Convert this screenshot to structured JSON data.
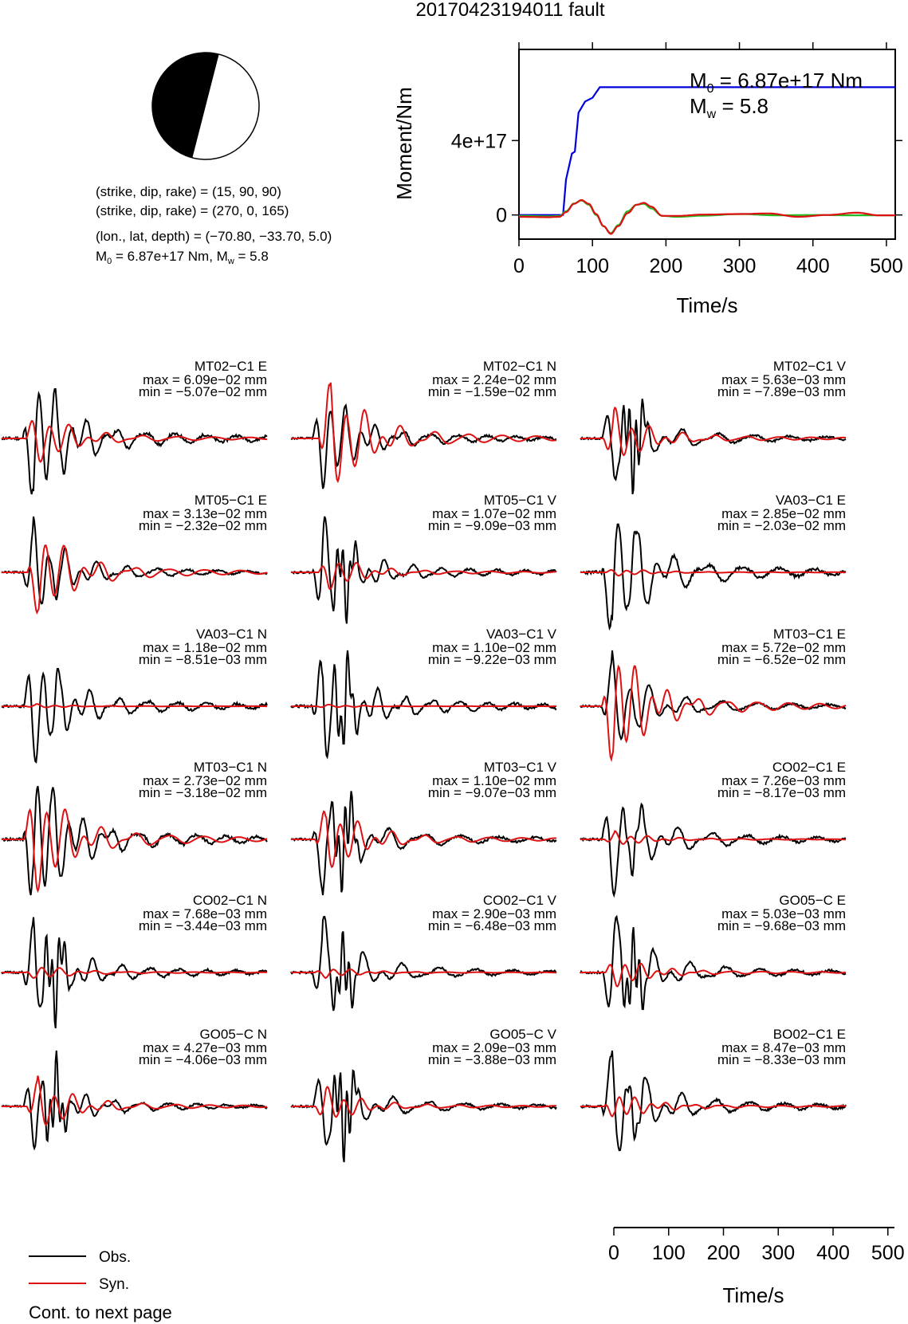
{
  "page": {
    "title": "20170423194011 fault",
    "continuation": "Cont. to next page"
  },
  "beachball": {
    "nodal1": "(strike, dip, rake) = (15, 90, 90)",
    "nodal2": "(strike, dip, rake) = (270, 0, 165)",
    "location": "(lon., lat, depth) = (−70.80, −33.70, 5.0)",
    "moment_prefix": "M",
    "moment_sub": "0",
    "moment_text": " = 6.87e+17 Nm, M",
    "mw_sub": "w",
    "mw_text": " = 5.8"
  },
  "moment_panel": {
    "ylabel": "Moment/Nm",
    "xlabel": "Time/s",
    "yticks": [
      "0",
      "4e+17"
    ],
    "xticks": [
      "0",
      "100",
      "200",
      "300",
      "400",
      "500"
    ],
    "annotation_m0_prefix": "M",
    "annotation_m0_sub": "0",
    "annotation_m0_text": " = 6.87e+17 Nm",
    "annotation_mw_prefix": "M",
    "annotation_mw_sub": "w",
    "annotation_mw_text": " = 5.8",
    "colors": {
      "cumulative": "#0000dd",
      "rate_a": "#22bb22",
      "rate_b": "#dd1111"
    }
  },
  "legend": {
    "obs_label": "Obs.",
    "syn_label": "Syn.",
    "obs_color": "#000000",
    "syn_color": "#dd1111"
  },
  "bottom_axis": {
    "xlabel": "Time/s",
    "xticks": [
      "0",
      "100",
      "200",
      "300",
      "400",
      "500"
    ]
  },
  "chart_data": [
    {
      "type": "line",
      "name": "moment",
      "xlabel": "Time/s",
      "ylabel": "Moment/Nm",
      "xlim": [
        0,
        512
      ],
      "ylim": [
        -1.3e+17,
        8.9e+17
      ],
      "series": [
        {
          "kind": "cumulative",
          "x": [
            0,
            60,
            64,
            72,
            76,
            81,
            90,
            100,
            110,
            512
          ],
          "y": [
            0,
            0,
            1.9e+17,
            3.3e+17,
            3.4e+17,
            5.5e+17,
            6.1e+17,
            6.3e+17,
            6.87e+17,
            6.87e+17
          ]
        },
        {
          "kind": "rate_green",
          "x": [
            0,
            40,
            55,
            64,
            75,
            85,
            95,
            105,
            115,
            125,
            135,
            148,
            160,
            170,
            180,
            195,
            215,
            250,
            300,
            350,
            400,
            450,
            512
          ],
          "y": [
            -5000000000000000.0,
            -7000000000000000.0,
            -6000000000000000.0,
            2e+16,
            6.2e+16,
            7.8e+16,
            5.5e+16,
            0.0,
            -6e+16,
            -9.8e+16,
            -5.5e+16,
            2e+16,
            5.5e+16,
            6e+16,
            3.5e+16,
            -5000000000000000.0,
            -1e+16,
            -4000000000000000.0,
            5000000000000000.0,
            -2000000000000000.0,
            0.0,
            -2000000000000000.0,
            -2000000000000000.0
          ]
        },
        {
          "kind": "rate_red",
          "x": [
            0,
            40,
            55,
            64,
            75,
            85,
            95,
            105,
            115,
            125,
            135,
            148,
            160,
            170,
            180,
            195,
            215,
            250,
            300,
            340,
            380,
            420,
            460,
            490,
            512
          ],
          "y": [
            -1e+16,
            -1.2e+16,
            -1e+16,
            1.5e+16,
            6e+16,
            8e+16,
            6e+16,
            5000000000000000.0,
            -6e+16,
            -1.02e+17,
            -6e+16,
            1e+16,
            5.5e+16,
            6.5e+16,
            4.5e+16,
            -5000000000000000.0,
            -5000000000000000.0,
            2000000000000000.0,
            5000000000000000.0,
            8000000000000000.0,
            -1e+16,
            0.0,
            1.2e+16,
            -2000000000000000.0,
            -2000000000000000.0
          ]
        }
      ]
    },
    {
      "type": "line",
      "name": "waveforms",
      "xlabel": "Time/s",
      "xlim": [
        0,
        512
      ],
      "units": "mm",
      "stations": [
        {
          "label": "MT02−C1 E",
          "max": "max = 6.09e−02 mm",
          "min": "min = −5.07e−02 mm",
          "seed": 11,
          "obs_amp": 1.0,
          "syn_amp": 0.42,
          "obs_burst": 0.1,
          "syn_lag": 4
        },
        {
          "label": "MT02−C1 N",
          "max": "max = 2.24e−02 mm",
          "min": "min = −1.59e−02 mm",
          "seed": 12,
          "obs_amp": 0.9,
          "syn_amp": 1.0,
          "obs_burst": 0.05,
          "syn_lag": 14
        },
        {
          "label": "MT02−C1 V",
          "max": "max = 5.63e−03 mm",
          "min": "min = −7.89e−03 mm",
          "seed": 13,
          "obs_amp": 1.0,
          "syn_amp": 0.55,
          "obs_burst": 0.9,
          "syn_lag": 3
        },
        {
          "label": "MT05−C1 E",
          "max": "max = 3.13e−02 mm",
          "min": "min = −2.32e−02 mm",
          "seed": 21,
          "obs_amp": 1.0,
          "syn_amp": 0.72,
          "obs_burst": 0.1,
          "syn_lag": 9
        },
        {
          "label": "MT05−C1 V",
          "max": "max = 1.07e−02 mm",
          "min": "min = −9.09e−03 mm",
          "seed": 22,
          "obs_amp": 1.0,
          "syn_amp": 0.3,
          "obs_burst": 0.6,
          "syn_lag": 12
        },
        {
          "label": "VA03−C1 E",
          "max": "max = 2.85e−02 mm",
          "min": "min = −2.03e−02 mm",
          "seed": 23,
          "obs_amp": 1.0,
          "syn_amp": 0.06,
          "obs_burst": 0.1,
          "syn_lag": 5
        },
        {
          "label": "VA03−C1 N",
          "max": "max = 1.18e−02 mm",
          "min": "min = −8.51e−03 mm",
          "seed": 31,
          "obs_amp": 1.0,
          "syn_amp": 0.04,
          "obs_burst": 0.1,
          "syn_lag": 5
        },
        {
          "label": "VA03−C1 V",
          "max": "max = 1.10e−02 mm",
          "min": "min = −9.22e−03 mm",
          "seed": 32,
          "obs_amp": 1.0,
          "syn_amp": 0.03,
          "obs_burst": 0.5,
          "syn_lag": 5
        },
        {
          "label": "MT03−C1 E",
          "max": "max = 5.72e−02 mm",
          "min": "min = −6.52e−02 mm",
          "seed": 33,
          "obs_amp": 1.0,
          "syn_amp": 0.95,
          "obs_burst": 0.05,
          "syn_lag": 1
        },
        {
          "label": "MT03−C1 N",
          "max": "max = 2.73e−02 mm",
          "min": "min = −3.18e−02 mm",
          "seed": 41,
          "obs_amp": 1.0,
          "syn_amp": 0.92,
          "obs_burst": 0.05,
          "syn_lag": 2
        },
        {
          "label": "MT03−C1 V",
          "max": "max = 1.10e−02 mm",
          "min": "min = −9.07e−03 mm",
          "seed": 42,
          "obs_amp": 1.0,
          "syn_amp": 0.5,
          "obs_burst": 0.7,
          "syn_lag": 6
        },
        {
          "label": "CO02−C1 E",
          "max": "max = 7.26e−03 mm",
          "min": "min = −8.17e−03 mm",
          "seed": 43,
          "obs_amp": 1.0,
          "syn_amp": 0.15,
          "obs_burst": 0.2,
          "syn_lag": 5
        },
        {
          "label": "CO02−C1 N",
          "max": "max = 7.68e−03 mm",
          "min": "min = −3.44e−03 mm",
          "seed": 51,
          "obs_amp": 1.0,
          "syn_amp": 0.1,
          "obs_burst": 0.7,
          "syn_lag": 5
        },
        {
          "label": "CO02−C1 V",
          "max": "max = 2.90e−03 mm",
          "min": "min = −6.48e−03 mm",
          "seed": 52,
          "obs_amp": 1.0,
          "syn_amp": 0.1,
          "obs_burst": 0.6,
          "syn_lag": 5
        },
        {
          "label": "GO05−C E",
          "max": "max = 5.03e−03 mm",
          "min": "min = −9.68e−03 mm",
          "seed": 53,
          "obs_amp": 1.0,
          "syn_amp": 0.25,
          "obs_burst": 0.6,
          "syn_lag": 5
        },
        {
          "label": "GO05−C N",
          "max": "max = 4.27e−03 mm",
          "min": "min = −4.06e−03 mm",
          "seed": 61,
          "obs_amp": 1.0,
          "syn_amp": 0.55,
          "obs_burst": 0.8,
          "syn_lag": 8
        },
        {
          "label": "GO05−C V",
          "max": "max = 2.09e−03 mm",
          "min": "min = −3.88e−03 mm",
          "seed": 62,
          "obs_amp": 1.0,
          "syn_amp": 0.35,
          "obs_burst": 0.9,
          "syn_lag": 5
        },
        {
          "label": "BO02−C1 E",
          "max": "max = 8.47e−03 mm",
          "min": "min = −8.33e−03 mm",
          "seed": 63,
          "obs_amp": 1.0,
          "syn_amp": 0.18,
          "obs_burst": 0.2,
          "syn_lag": 5
        }
      ]
    }
  ]
}
